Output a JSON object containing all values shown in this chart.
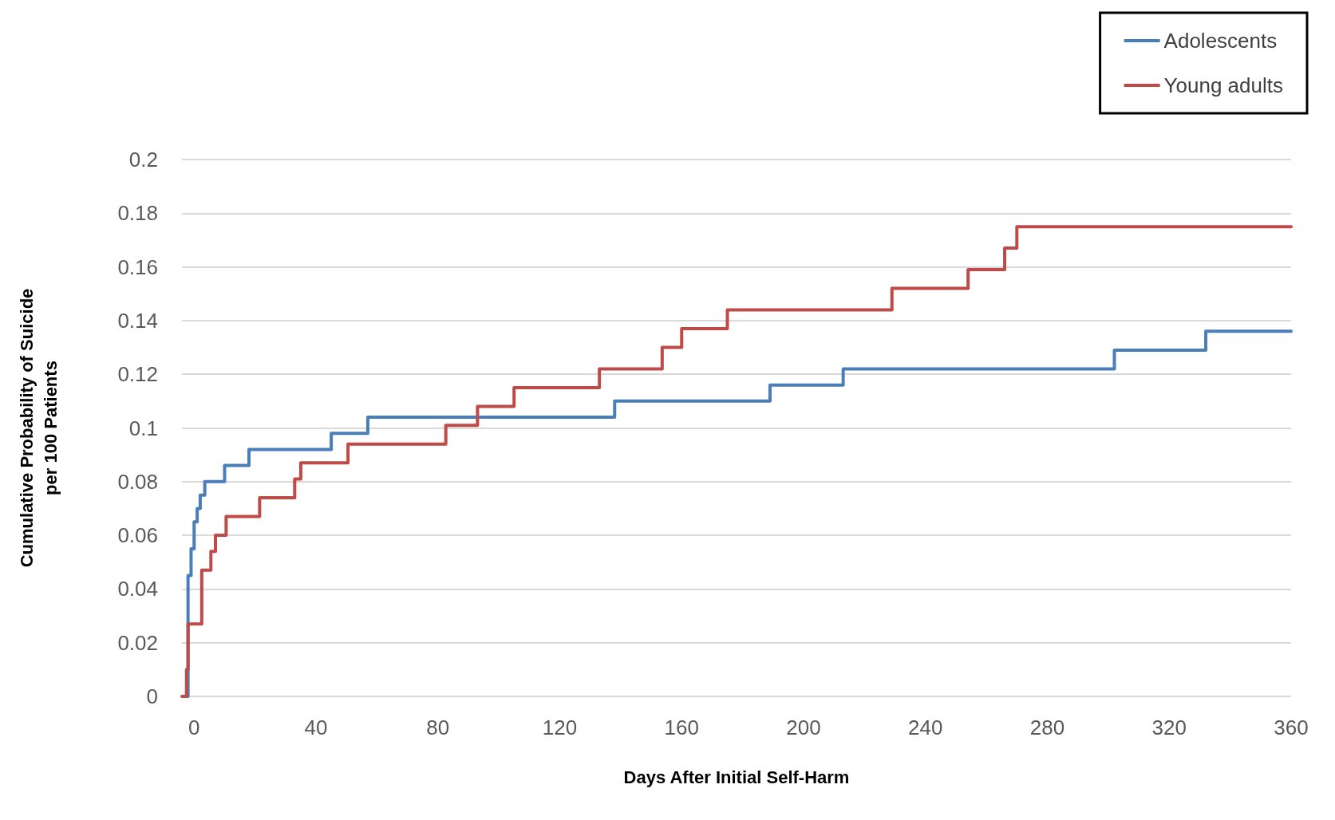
{
  "chart_data": {
    "type": "step",
    "xlabel": "Days After Initial Self-Harm",
    "ylabel": "Cumulative Probability of Suicide\nper 100 Patients",
    "xlim": [
      -4,
      360
    ],
    "xticks": [
      0,
      40,
      80,
      120,
      160,
      200,
      240,
      280,
      320,
      360
    ],
    "ylim": [
      0,
      0.2
    ],
    "yticks": [
      0,
      0.02,
      0.04,
      0.06,
      0.08,
      0.1,
      0.12,
      0.14,
      0.16,
      0.18,
      0.2
    ],
    "grid": "y",
    "legend": "top right",
    "marker": "none",
    "line_style": "solid",
    "series": [
      {
        "name": "Adolescents",
        "color": "#4a7ebb",
        "x": [
          -2.5,
          -2,
          -1,
          0,
          1,
          2,
          3.5,
          10,
          18,
          45,
          57,
          138,
          189,
          213,
          302,
          332,
          360
        ],
        "values": [
          0,
          0.045,
          0.055,
          0.065,
          0.07,
          0.075,
          0.08,
          0.086,
          0.092,
          0.098,
          0.104,
          0.11,
          0.116,
          0.122,
          0.129,
          0.136,
          0.136
        ]
      },
      {
        "name": "Young adults",
        "color": "#be4b48",
        "x": [
          -4,
          -2.5,
          -2,
          2.5,
          5.5,
          7,
          10.5,
          21.5,
          33,
          35,
          50.5,
          82.6,
          93,
          105,
          133,
          153.6,
          160,
          175,
          229,
          254,
          266,
          270,
          360
        ],
        "values": [
          0,
          0.01,
          0.027,
          0.047,
          0.054,
          0.06,
          0.067,
          0.074,
          0.081,
          0.087,
          0.094,
          0.101,
          0.108,
          0.115,
          0.122,
          0.13,
          0.137,
          0.144,
          0.152,
          0.159,
          0.167,
          0.175,
          0.175
        ]
      }
    ]
  }
}
